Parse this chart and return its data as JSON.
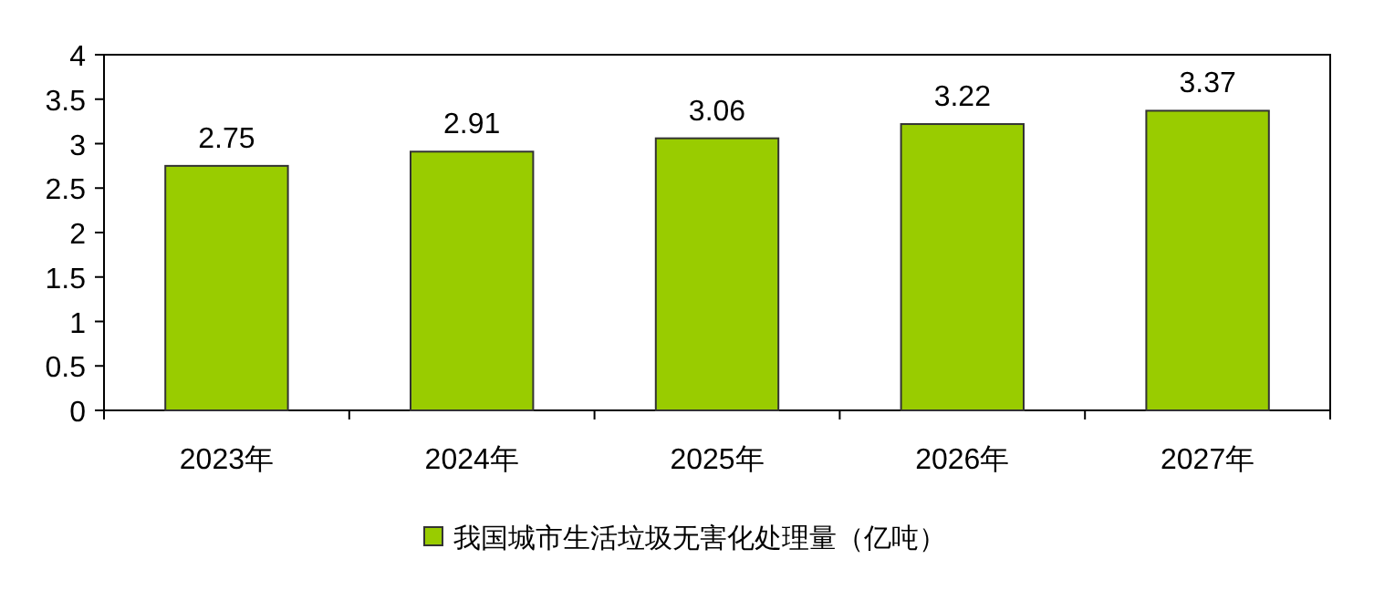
{
  "chart_data": {
    "type": "bar",
    "categories": [
      "2023年",
      "2024年",
      "2025年",
      "2026年",
      "2027年"
    ],
    "series": [
      {
        "name": "我国城市生活垃圾无害化处理量（亿吨）",
        "color": "#99cc00",
        "values": [
          2.75,
          2.91,
          3.06,
          3.22,
          3.37
        ]
      }
    ],
    "ylim": [
      0,
      4
    ],
    "yticks": [
      0,
      0.5,
      1,
      1.5,
      2,
      2.5,
      3,
      3.5,
      4
    ],
    "data_labels": true,
    "legend": "bottom",
    "grid": false
  }
}
